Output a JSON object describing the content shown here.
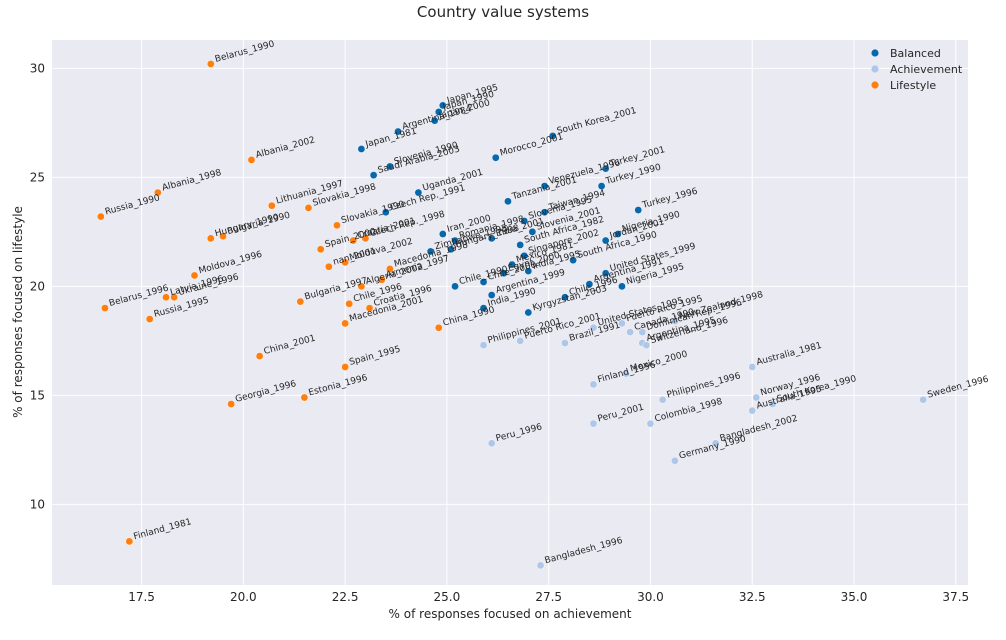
{
  "chart_data": {
    "type": "scatter",
    "title": "Country value systems",
    "xlabel": "% of responses focused on achievement",
    "ylabel": "% of responses focused on lifestyle",
    "xlim": [
      15.3,
      37.8
    ],
    "ylim": [
      6.3,
      31.3
    ],
    "xticks": [
      17.5,
      20.0,
      22.5,
      25.0,
      27.5,
      30.0,
      32.5,
      35.0,
      37.5
    ],
    "yticks": [
      10,
      15,
      20,
      25,
      30
    ],
    "grid": true,
    "legend_position": "top-right",
    "series": [
      {
        "name": "Balanced",
        "color": "#0868ac",
        "points": [
          {
            "label": "Japan_1995",
            "x": 24.9,
            "y": 28.3
          },
          {
            "label": "Japan_1990",
            "x": 24.8,
            "y": 28.0
          },
          {
            "label": "Japan_2000",
            "x": 24.7,
            "y": 27.6
          },
          {
            "label": "Argentina_1984",
            "x": 23.8,
            "y": 27.1
          },
          {
            "label": "Japan_1981",
            "x": 22.9,
            "y": 26.3
          },
          {
            "label": "Morocco_2001",
            "x": 26.2,
            "y": 25.9
          },
          {
            "label": "South Korea_2001",
            "x": 27.6,
            "y": 26.9
          },
          {
            "label": "Slovenia_1990",
            "x": 23.6,
            "y": 25.5
          },
          {
            "label": "Saudi Arabia_2003",
            "x": 23.2,
            "y": 25.1
          },
          {
            "label": "Venezuela_1996",
            "x": 27.4,
            "y": 24.6
          },
          {
            "label": "Turkey_2001",
            "x": 28.9,
            "y": 25.4
          },
          {
            "label": "Turkey_1990",
            "x": 28.8,
            "y": 24.6
          },
          {
            "label": "Uganda_2001",
            "x": 24.3,
            "y": 24.3
          },
          {
            "label": "Czech Rep._1991",
            "x": 23.5,
            "y": 23.4
          },
          {
            "label": "Tanzania_2001",
            "x": 26.5,
            "y": 23.9
          },
          {
            "label": "Taiwan_1994",
            "x": 27.4,
            "y": 23.4
          },
          {
            "label": "Slovenia_1995",
            "x": 26.9,
            "y": 23.0
          },
          {
            "label": "Iran_2000",
            "x": 24.9,
            "y": 22.4
          },
          {
            "label": "Romania_1998",
            "x": 25.2,
            "y": 22.1
          },
          {
            "label": "Hungary_1998",
            "x": 25.1,
            "y": 21.7
          },
          {
            "label": "Slovenia_2001",
            "x": 27.1,
            "y": 22.5
          },
          {
            "label": "India_2001",
            "x": 26.1,
            "y": 22.2
          },
          {
            "label": "South Africa_1982",
            "x": 26.8,
            "y": 21.9
          },
          {
            "label": "Singapore_2002",
            "x": 26.9,
            "y": 21.4
          },
          {
            "label": "Mexico_1981",
            "x": 26.6,
            "y": 21.0
          },
          {
            "label": "Egypt_2000",
            "x": 26.4,
            "y": 20.6
          },
          {
            "label": "Zimbabwe_1995",
            "x": 24.6,
            "y": 21.6
          },
          {
            "label": "Turkey_1996",
            "x": 29.7,
            "y": 23.5
          },
          {
            "label": "Jordan_2001",
            "x": 28.9,
            "y": 22.1
          },
          {
            "label": "Nigeria_1990",
            "x": 29.2,
            "y": 22.4
          },
          {
            "label": "South Africa_1990",
            "x": 28.1,
            "y": 21.2
          },
          {
            "label": "Chile_1990",
            "x": 25.2,
            "y": 20.0
          },
          {
            "label": "Chile_2000",
            "x": 25.9,
            "y": 20.2
          },
          {
            "label": "India_1990",
            "x": 25.9,
            "y": 19.0
          },
          {
            "label": "Argentina_1999",
            "x": 26.1,
            "y": 19.6
          },
          {
            "label": "Kyrgyzstan_2003",
            "x": 27.0,
            "y": 18.8
          },
          {
            "label": "India_1995",
            "x": 27.0,
            "y": 20.7
          },
          {
            "label": "Chile_1996",
            "x": 27.9,
            "y": 19.5
          },
          {
            "label": "Argentina_1991",
            "x": 28.5,
            "y": 20.1
          },
          {
            "label": "United States_1999",
            "x": 28.9,
            "y": 20.6
          },
          {
            "label": "Nigeria_1995",
            "x": 29.3,
            "y": 20.0
          }
        ]
      },
      {
        "name": "Achievement",
        "color": "#aec7e8",
        "points": [
          {
            "label": "Philippines_2001",
            "x": 25.9,
            "y": 17.3
          },
          {
            "label": "Puerto Rico_2001",
            "x": 26.8,
            "y": 17.5
          },
          {
            "label": "Brazil_1991",
            "x": 27.9,
            "y": 17.4
          },
          {
            "label": "United States_1995",
            "x": 28.6,
            "y": 18.1
          },
          {
            "label": "Puerto Rico_1995",
            "x": 29.3,
            "y": 18.3
          },
          {
            "label": "Canada_1990",
            "x": 29.5,
            "y": 17.9
          },
          {
            "label": "Dominican Rep._1996",
            "x": 29.8,
            "y": 17.9
          },
          {
            "label": "Argentina_1995",
            "x": 29.8,
            "y": 17.4
          },
          {
            "label": "Switzerland_1996",
            "x": 29.9,
            "y": 17.3
          },
          {
            "label": "New Zealand_1998",
            "x": 30.6,
            "y": 18.4
          },
          {
            "label": "Finland_1996",
            "x": 28.6,
            "y": 15.5
          },
          {
            "label": "Mexico_2000",
            "x": 29.4,
            "y": 16.0
          },
          {
            "label": "Philippines_1996",
            "x": 30.3,
            "y": 14.8
          },
          {
            "label": "Australia_1981",
            "x": 32.5,
            "y": 16.3
          },
          {
            "label": "Norway_1996",
            "x": 32.6,
            "y": 14.9
          },
          {
            "label": "Australia_1995",
            "x": 32.5,
            "y": 14.3
          },
          {
            "label": "South Korea_1990",
            "x": 33.0,
            "y": 14.6
          },
          {
            "label": "Sweden_1996",
            "x": 36.7,
            "y": 14.8
          },
          {
            "label": "Peru_2001",
            "x": 28.6,
            "y": 13.7
          },
          {
            "label": "Colombia_1998",
            "x": 30.0,
            "y": 13.7
          },
          {
            "label": "Peru_1996",
            "x": 26.1,
            "y": 12.8
          },
          {
            "label": "Germany_1990",
            "x": 30.6,
            "y": 12.0
          },
          {
            "label": "Bangladesh_2002",
            "x": 31.6,
            "y": 12.8
          },
          {
            "label": "Bangladesh_1996",
            "x": 27.3,
            "y": 7.2
          }
        ]
      },
      {
        "name": "Lifestyle",
        "color": "#ff7f0e",
        "points": [
          {
            "label": "Belarus_1990",
            "x": 19.2,
            "y": 30.2
          },
          {
            "label": "Albania_2002",
            "x": 20.2,
            "y": 25.8
          },
          {
            "label": "Russia_1990",
            "x": 16.5,
            "y": 23.2
          },
          {
            "label": "Albania_1998",
            "x": 17.9,
            "y": 24.3
          },
          {
            "label": "Lithuania_1997",
            "x": 20.7,
            "y": 23.7
          },
          {
            "label": "Slovakia_1998",
            "x": 21.6,
            "y": 23.6
          },
          {
            "label": "Hungary_1990",
            "x": 19.2,
            "y": 22.2
          },
          {
            "label": "Bulgaria_1990",
            "x": 19.5,
            "y": 22.3
          },
          {
            "label": "Slovakia_1990",
            "x": 22.3,
            "y": 22.8
          },
          {
            "label": "Czech Rep._1998",
            "x": 23.0,
            "y": 22.2
          },
          {
            "label": "Spain_2000",
            "x": 21.9,
            "y": 21.7
          },
          {
            "label": "Croatia_2001",
            "x": 22.7,
            "y": 22.1
          },
          {
            "label": "Moldova_2002",
            "x": 22.5,
            "y": 21.1
          },
          {
            "label": "nan_2001",
            "x": 22.1,
            "y": 20.9
          },
          {
            "label": "Belarus_1996",
            "x": 16.6,
            "y": 19.0
          },
          {
            "label": "Moldova_1996",
            "x": 18.8,
            "y": 20.5
          },
          {
            "label": "Ukraine_1996",
            "x": 18.3,
            "y": 19.5
          },
          {
            "label": "Latvia_1996",
            "x": 18.1,
            "y": 19.5
          },
          {
            "label": "Russia_1995",
            "x": 17.7,
            "y": 18.5
          },
          {
            "label": "Bulgaria_1997",
            "x": 21.4,
            "y": 19.3
          },
          {
            "label": "Algeria_2002",
            "x": 22.9,
            "y": 20.0
          },
          {
            "label": "Armenia_1997",
            "x": 23.4,
            "y": 20.3
          },
          {
            "label": "Macedonia_1998",
            "x": 23.6,
            "y": 20.8
          },
          {
            "label": "Croatia_1996",
            "x": 23.1,
            "y": 19.0
          },
          {
            "label": "Chile_1996",
            "x": 22.6,
            "y": 19.2
          },
          {
            "label": "Macedonia_2001",
            "x": 22.5,
            "y": 18.3
          },
          {
            "label": "China_1990",
            "x": 24.8,
            "y": 18.1
          },
          {
            "label": "China_2001",
            "x": 20.4,
            "y": 16.8
          },
          {
            "label": "Spain_1995",
            "x": 22.5,
            "y": 16.3
          },
          {
            "label": "Georgia_1996",
            "x": 19.7,
            "y": 14.6
          },
          {
            "label": "Estonia_1996",
            "x": 21.5,
            "y": 14.9
          },
          {
            "label": "Finland_1981",
            "x": 17.2,
            "y": 8.3
          }
        ]
      }
    ]
  }
}
